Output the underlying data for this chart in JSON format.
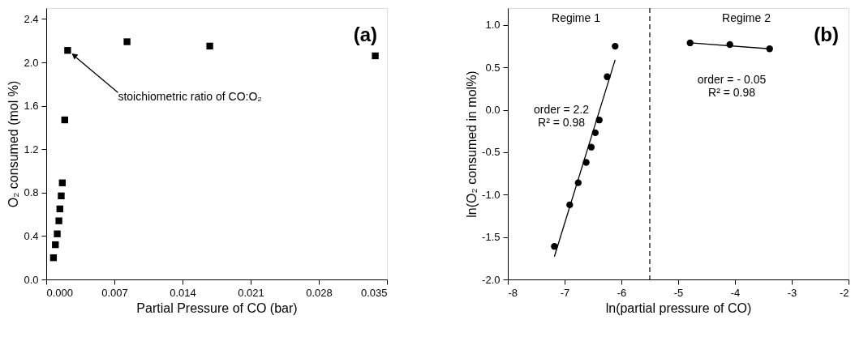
{
  "chart_data": [
    {
      "type": "scatter",
      "xlabel": "Partial Pressure of CO (bar)",
      "ylabel": "O₂ consumed (mol %)",
      "marker": "square",
      "grid": false,
      "xlim": [
        0,
        0.035
      ],
      "ylim": [
        0,
        2.5
      ],
      "xticks": [
        {
          "value": 0,
          "label": "0.000"
        },
        {
          "value": 0.007,
          "label": "0.007"
        },
        {
          "value": 0.014,
          "label": "0.014"
        },
        {
          "value": 0.021,
          "label": "0.021"
        },
        {
          "value": 0.028,
          "label": "0.028"
        },
        {
          "value": 0.035,
          "label": "0.035"
        }
      ],
      "yticks": [
        {
          "value": 0,
          "label": "0.0"
        },
        {
          "value": 0.4,
          "label": "0.4"
        },
        {
          "value": 0.8,
          "label": "0.8"
        },
        {
          "value": 1.2,
          "label": "1.2"
        },
        {
          "value": 1.6,
          "label": "1.6"
        },
        {
          "value": 2,
          "label": "2.0"
        },
        {
          "value": 2.4,
          "label": "2.4"
        }
      ],
      "series": [
        {
          "color": "#000000",
          "x": [
            0.00074,
            0.00094,
            0.00113,
            0.0013,
            0.0014,
            0.00154,
            0.00165,
            0.0019,
            0.0022,
            0.0083,
            0.0168,
            0.0338
          ],
          "values": [
            0.2,
            0.32,
            0.42,
            0.54,
            0.65,
            0.77,
            0.89,
            1.47,
            2.11,
            2.19,
            2.15,
            2.06
          ]
        }
      ],
      "annotations": [
        "(a)",
        {
          "text": "stoichiometric ratio of CO:O₂",
          "x": 0.0022,
          "y": 2.11
        }
      ]
    },
    {
      "type": "scatter",
      "xlabel": "ln(partial pressure of CO)",
      "ylabel": "ln(O₂ consumed in mol%)",
      "marker": "circle",
      "grid": false,
      "xlim": [
        -8,
        -2
      ],
      "ylim": [
        -2,
        1.2
      ],
      "xticks": [
        -8,
        -7,
        -6,
        -5,
        -4,
        -3,
        -2
      ],
      "yticks": [
        {
          "value": -2,
          "label": "-2.0"
        },
        {
          "value": -1.5,
          "label": "-1.5"
        },
        {
          "value": -1,
          "label": "-1.0"
        },
        {
          "value": -0.5,
          "label": "-0.5"
        },
        {
          "value": 0,
          "label": "0.0"
        },
        {
          "value": 0.5,
          "label": "0.5"
        },
        {
          "value": 1,
          "label": "1.0"
        }
      ],
      "series": [
        {
          "type": "scatter",
          "color": "#000000",
          "x": [
            -7.18,
            -6.91,
            -6.76,
            -6.62,
            -6.53,
            -6.46,
            -6.39,
            -6.25,
            -6.11
          ],
          "values": [
            -1.61,
            -1.12,
            -0.86,
            -0.62,
            -0.44,
            -0.27,
            -0.12,
            0.39,
            0.75
          ]
        },
        {
          "type": "line",
          "marker": "none",
          "color": "#000000",
          "x": [
            -7.18,
            -6.11
          ],
          "values": [
            -1.73,
            0.59
          ]
        },
        {
          "type": "scatter",
          "color": "#000000",
          "x": [
            -4.79,
            -4.09,
            -3.39
          ],
          "values": [
            0.79,
            0.77,
            0.72
          ]
        },
        {
          "type": "line",
          "marker": "none",
          "color": "#000000",
          "x": [
            -4.79,
            -3.39
          ],
          "values": [
            0.79,
            0.72
          ]
        }
      ],
      "ref_lines": [
        {
          "axis": "x",
          "value": -5.5,
          "line_style": "dashed",
          "color": "#000000"
        }
      ],
      "annotations": [
        "(b)",
        "Regime 1",
        "Regime 2",
        "order = 2.2\nR² = 0.98",
        "order = - 0.05\nR² = 0.98"
      ]
    }
  ]
}
